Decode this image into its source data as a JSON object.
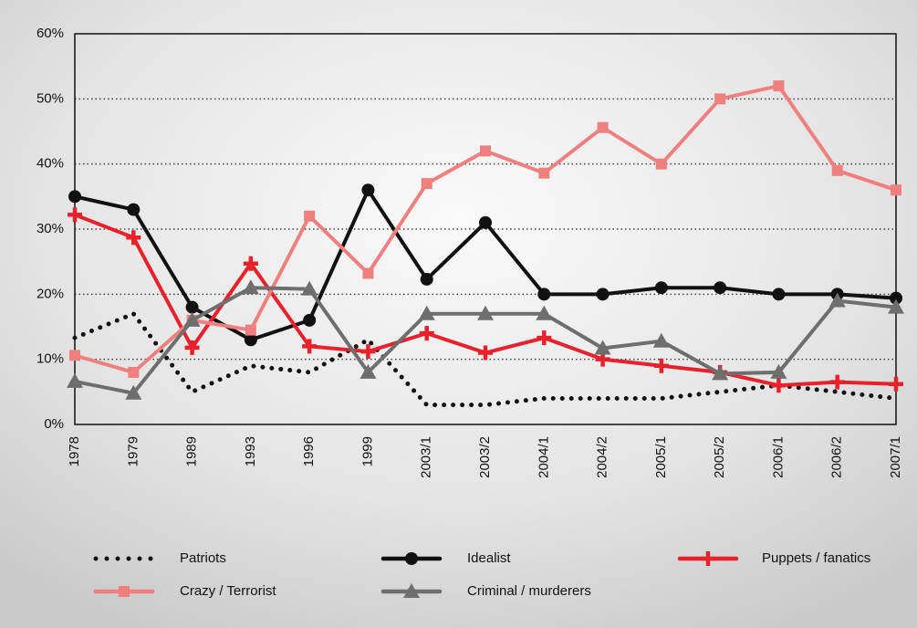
{
  "chart_data": {
    "type": "line",
    "categories": [
      "1978",
      "1979",
      "1989",
      "1993",
      "1996",
      "1999",
      "2003/1",
      "2003/2",
      "2004/1",
      "2004/2",
      "2005/1",
      "2005/2",
      "2006/1",
      "2006/2",
      "2007/1"
    ],
    "series": [
      {
        "name": "Patriots",
        "color": "#111111",
        "marker": "dot",
        "values": [
          13.3,
          17,
          5,
          9,
          8,
          13,
          3,
          3,
          4,
          4,
          4,
          5,
          6,
          5,
          4
        ]
      },
      {
        "name": "Idealist",
        "color": "#111111",
        "marker": "circle",
        "values": [
          35,
          33,
          18,
          13,
          16,
          36,
          22.3,
          31,
          20,
          20,
          21,
          21,
          20,
          20,
          19.4
        ]
      },
      {
        "name": "Puppets / fanatics",
        "color": "#e8212b",
        "marker": "plus",
        "values": [
          32.2,
          28.7,
          11.8,
          24.7,
          12,
          11.2,
          14,
          11,
          13.3,
          10,
          9,
          8,
          6,
          6.5,
          6.2
        ]
      },
      {
        "name": "Crazy / Terrorist",
        "color": "#f08080",
        "marker": "square",
        "values": [
          10.6,
          8,
          16,
          14.5,
          32,
          23.2,
          37,
          42,
          38.6,
          45.6,
          40,
          50,
          52,
          39,
          36
        ]
      },
      {
        "name": "Criminal / murderers",
        "color": "#6e6e6e",
        "marker": "triangle",
        "values": [
          6.6,
          4.8,
          16,
          21,
          20.8,
          8,
          17,
          17,
          17,
          11.7,
          12.8,
          7.8,
          8,
          19,
          18
        ]
      }
    ],
    "ylim": [
      0,
      60
    ],
    "yticks": [
      {
        "value": 0,
        "label": "0%"
      },
      {
        "value": 10,
        "label": "10%"
      },
      {
        "value": 20,
        "label": "20%"
      },
      {
        "value": 30,
        "label": "30%"
      },
      {
        "value": 40,
        "label": "40%"
      },
      {
        "value": 50,
        "label": "50%"
      },
      {
        "value": 60,
        "label": "60%"
      }
    ],
    "grid": true
  }
}
